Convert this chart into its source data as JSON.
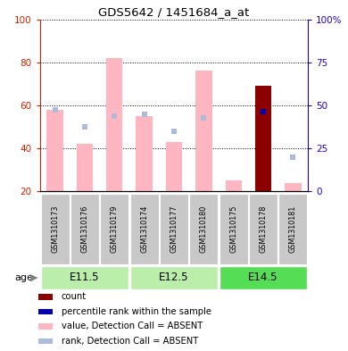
{
  "title": "GDS5642 / 1451684_a_at",
  "samples": [
    "GSM1310173",
    "GSM1310176",
    "GSM1310179",
    "GSM1310174",
    "GSM1310177",
    "GSM1310180",
    "GSM1310175",
    "GSM1310178",
    "GSM1310181"
  ],
  "value_absent": [
    58,
    42,
    82,
    55,
    43,
    76,
    25,
    null,
    24
  ],
  "rank_absent": [
    58,
    50,
    55,
    56,
    48,
    54,
    null,
    null,
    36
  ],
  "count": [
    null,
    null,
    null,
    null,
    null,
    null,
    null,
    69,
    null
  ],
  "percentile_rank": [
    null,
    null,
    null,
    null,
    null,
    null,
    null,
    57,
    null
  ],
  "bar_bottom": 20,
  "ylim": [
    20,
    100
  ],
  "yticks_left": [
    20,
    40,
    60,
    80,
    100
  ],
  "right_tick_positions": [
    20,
    40,
    60,
    80,
    100
  ],
  "right_tick_labels": [
    "0",
    "25",
    "50",
    "75",
    "100%"
  ],
  "gridlines": [
    40,
    60,
    80,
    100
  ],
  "colors": {
    "count": "#8B0000",
    "percentile": "#0000AA",
    "value_absent": "#FFB6C1",
    "rank_absent": "#AABBDD",
    "axis_left": "#CC2200",
    "axis_right": "#2200CC",
    "sample_bg": "#C8C8C8",
    "age_bg_light": "#90EE90",
    "age_bg_dark": "#44CC44"
  },
  "age_groups": [
    {
      "label": "E11.5",
      "start": 0,
      "end": 3
    },
    {
      "label": "E12.5",
      "start": 3,
      "end": 6
    },
    {
      "label": "E14.5",
      "start": 6,
      "end": 9
    }
  ],
  "age_colors": [
    "#BBEEAA",
    "#BBEEAA",
    "#55DD55"
  ],
  "legend": [
    {
      "label": "count",
      "color": "#8B0000"
    },
    {
      "label": "percentile rank within the sample",
      "color": "#0000AA"
    },
    {
      "label": "value, Detection Call = ABSENT",
      "color": "#FFB6C1"
    },
    {
      "label": "rank, Detection Call = ABSENT",
      "color": "#AABBDD"
    }
  ]
}
